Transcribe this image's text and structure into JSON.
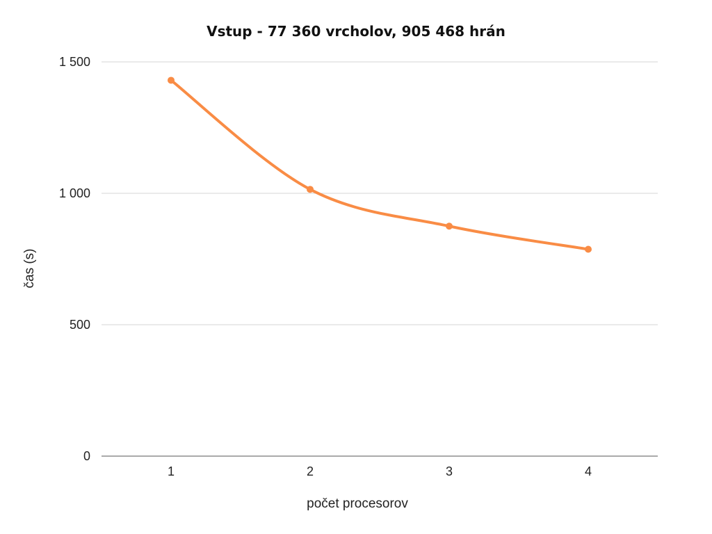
{
  "chart_data": {
    "type": "line",
    "title": "Vstup - 77 360 vrcholov,  905 468 hrán",
    "xlabel": "počet procesorov",
    "ylabel": "čas (s)",
    "categories": [
      "1",
      "2",
      "3",
      "4"
    ],
    "series": [
      {
        "values": [
          1430,
          1015,
          875,
          787
        ],
        "color": "#f98c45"
      }
    ],
    "ylim": [
      0,
      1500
    ],
    "yticks": [
      0,
      500,
      1000,
      1500
    ],
    "ytick_labels": [
      "0",
      "500",
      "1 000",
      "1 500"
    ],
    "grid": true,
    "line_style": "smooth",
    "markers": true
  }
}
